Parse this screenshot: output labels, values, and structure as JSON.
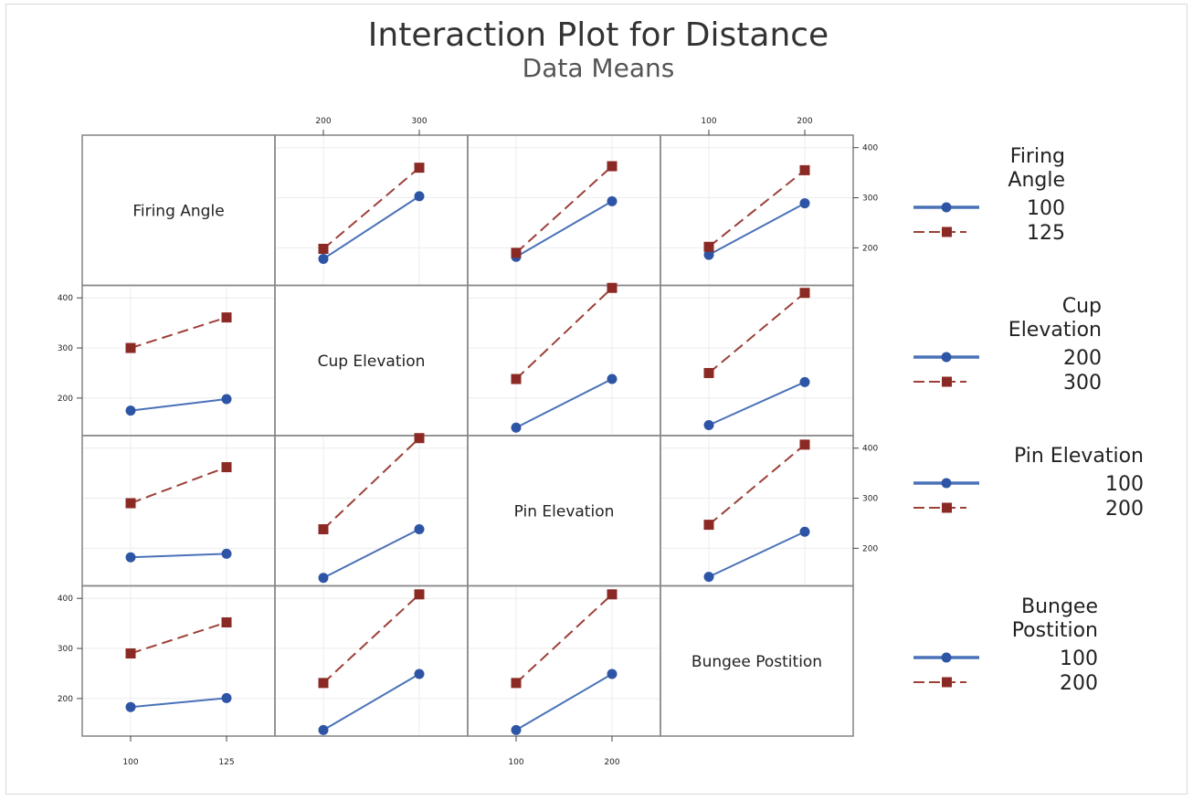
{
  "title": "Interaction Plot for Distance",
  "subtitle": "Data Means",
  "colors": {
    "level1": "#2e55a5",
    "level2": "#8b2a24",
    "level1_line": "#4a72b8",
    "level2_line": "#9c4038",
    "grid": "#ececec",
    "frame": "#8a8a8a"
  },
  "chart_data": {
    "type": "line",
    "title": "Interaction Plot for Distance",
    "subtitle": "Data Means",
    "factors": [
      {
        "name": "Firing Angle",
        "legend_label": "Firing Angle",
        "levels": [
          "100",
          "125"
        ]
      },
      {
        "name": "Cup Elevation",
        "legend_label": "Cup Elevation",
        "levels": [
          "200",
          "300"
        ]
      },
      {
        "name": "Pin Elevation",
        "legend_label": "Pin Elevation",
        "levels": [
          "100",
          "200"
        ]
      },
      {
        "name": "Bungee Postition",
        "legend_label": "Bungee Postition",
        "levels": [
          "100",
          "200"
        ]
      }
    ],
    "ylim": [
      125,
      425
    ],
    "yticks": [
      200,
      300,
      400
    ],
    "grid": true,
    "legend_position": "right",
    "panels": [
      {
        "row": 0,
        "col": 1,
        "series": [
          {
            "level": "100",
            "values": [
              178,
              303
            ]
          },
          {
            "level": "125",
            "values": [
              198,
              360
            ]
          }
        ]
      },
      {
        "row": 0,
        "col": 2,
        "series": [
          {
            "level": "100",
            "values": [
              182,
              293
            ]
          },
          {
            "level": "125",
            "values": [
              190,
              363
            ]
          }
        ]
      },
      {
        "row": 0,
        "col": 3,
        "series": [
          {
            "level": "100",
            "values": [
              186,
              289
            ]
          },
          {
            "level": "125",
            "values": [
              202,
              355
            ]
          }
        ]
      },
      {
        "row": 1,
        "col": 0,
        "series": [
          {
            "level": "200",
            "values": [
              175,
              198
            ]
          },
          {
            "level": "300",
            "values": [
              300,
              361
            ]
          }
        ]
      },
      {
        "row": 1,
        "col": 2,
        "series": [
          {
            "level": "200",
            "values": [
              141,
              238
            ]
          },
          {
            "level": "300",
            "values": [
              238,
              420
            ]
          }
        ]
      },
      {
        "row": 1,
        "col": 3,
        "series": [
          {
            "level": "200",
            "values": [
              146,
              232
            ]
          },
          {
            "level": "300",
            "values": [
              250,
              410
            ]
          }
        ]
      },
      {
        "row": 2,
        "col": 0,
        "series": [
          {
            "level": "100",
            "values": [
              182,
              189
            ]
          },
          {
            "level": "200",
            "values": [
              290,
              362
            ]
          }
        ]
      },
      {
        "row": 2,
        "col": 1,
        "series": [
          {
            "level": "100",
            "values": [
              141,
              238
            ]
          },
          {
            "level": "200",
            "values": [
              238,
              420
            ]
          }
        ]
      },
      {
        "row": 2,
        "col": 3,
        "series": [
          {
            "level": "100",
            "values": [
              143,
              233
            ]
          },
          {
            "level": "200",
            "values": [
              247,
              407
            ]
          }
        ]
      },
      {
        "row": 3,
        "col": 0,
        "series": [
          {
            "level": "100",
            "values": [
              183,
              201
            ]
          },
          {
            "level": "200",
            "values": [
              290,
              352
            ]
          }
        ]
      },
      {
        "row": 3,
        "col": 1,
        "series": [
          {
            "level": "100",
            "values": [
              137,
              249
            ]
          },
          {
            "level": "200",
            "values": [
              231,
              408
            ]
          }
        ]
      },
      {
        "row": 3,
        "col": 2,
        "series": [
          {
            "level": "100",
            "values": [
              137,
              249
            ]
          },
          {
            "level": "200",
            "values": [
              231,
              408
            ]
          }
        ]
      }
    ]
  }
}
